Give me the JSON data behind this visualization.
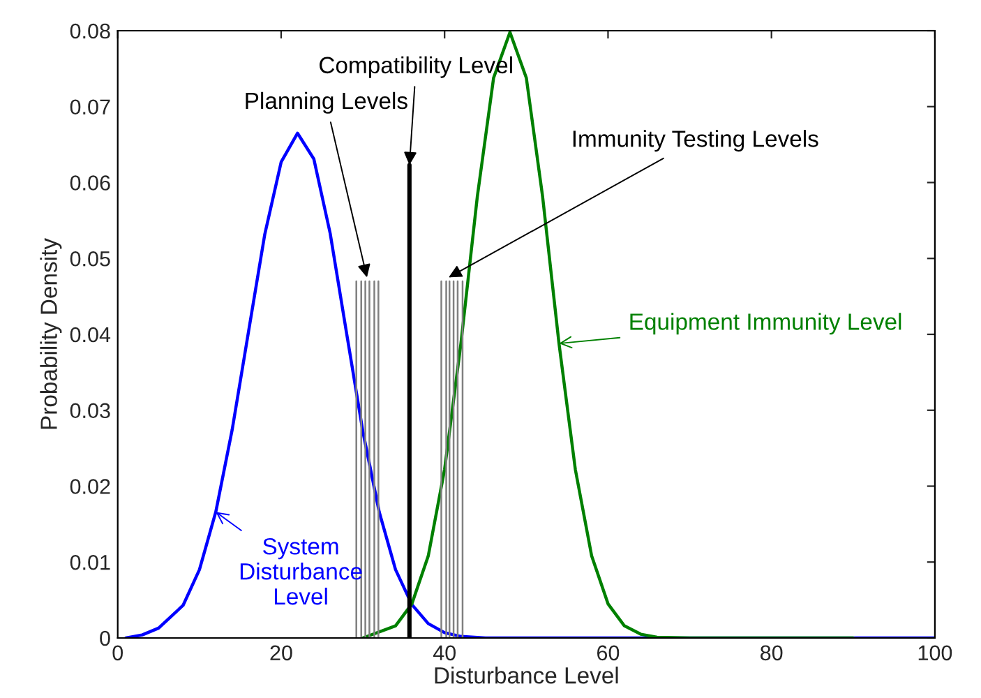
{
  "chart_data": {
    "type": "line",
    "xlabel": "Disturbance Level",
    "ylabel": "Probability Density",
    "xlim": [
      0,
      100
    ],
    "ylim": [
      0,
      0.08
    ],
    "xticks": [
      0,
      20,
      40,
      60,
      80,
      100
    ],
    "yticks": [
      0,
      0.01,
      0.02,
      0.03,
      0.04,
      0.05,
      0.06,
      0.07,
      0.08
    ],
    "grid": false,
    "marker": "none",
    "line_style": "solid",
    "series": [
      {
        "color": "#0000ff",
        "x": [
          1,
          3,
          5,
          8,
          10,
          12,
          14,
          16,
          18,
          20,
          22,
          24,
          26,
          28,
          30,
          32,
          34,
          36,
          38,
          40,
          42,
          45,
          50,
          100
        ],
        "values": [
          0,
          0.0004,
          0.0013,
          0.0043,
          0.009,
          0.0166,
          0.0274,
          0.0403,
          0.0532,
          0.0627,
          0.0665,
          0.0631,
          0.0533,
          0.0402,
          0.0272,
          0.0166,
          0.009,
          0.0044,
          0.0019,
          0.0007,
          0.0002,
          0,
          0,
          0
        ]
      },
      {
        "color": "#008000",
        "x": [
          30,
          34,
          36,
          38,
          40,
          42,
          44,
          46,
          48,
          50,
          52,
          54,
          56,
          58,
          60,
          62,
          64,
          66,
          70,
          90
        ],
        "values": [
          0,
          0.0016,
          0.0045,
          0.0108,
          0.0222,
          0.0388,
          0.0581,
          0.0738,
          0.0798,
          0.0738,
          0.0581,
          0.0388,
          0.0222,
          0.0108,
          0.0045,
          0.0016,
          0.0005,
          0.0001,
          0,
          0
        ]
      },
      {
        "color": "#808080",
        "x": [
          29.2,
          29.2,
          null,
          29.8,
          29.8,
          null,
          30.3,
          30.3,
          null,
          30.8,
          30.8,
          null,
          31.4,
          31.4,
          null,
          31.9,
          31.9
        ],
        "values": [
          0,
          0.047,
          null,
          0,
          0.047,
          null,
          0,
          0.047,
          null,
          0,
          0.047,
          null,
          0,
          0.047,
          null,
          0,
          0.047
        ]
      },
      {
        "color": "#808080",
        "x": [
          39.6,
          39.6,
          null,
          40.2,
          40.2,
          null,
          40.6,
          40.6,
          null,
          41.1,
          41.1,
          null,
          41.6,
          41.6,
          null,
          42.2,
          42.2
        ],
        "values": [
          0,
          0.047,
          null,
          0,
          0.047,
          null,
          0,
          0.047,
          null,
          0,
          0.047,
          null,
          0,
          0.047,
          null,
          0,
          0.047
        ]
      },
      {
        "color": "#000000",
        "x": [
          35.7,
          35.7
        ],
        "values": [
          0,
          0.0623
        ]
      }
    ],
    "annotations": [
      {
        "text": "Compatibility Level",
        "x": 35.7,
        "y": 0.0623
      },
      {
        "text": "Planning Levels",
        "x": 30.5,
        "y": 0.0475
      },
      {
        "text": "Immunity Testing Levels",
        "x": 40.5,
        "y": 0.0475
      },
      {
        "text": "Equipment Immunity Level",
        "x": 54,
        "y": 0.0388
      },
      {
        "text": "System\nDisturbance\nLevel",
        "x": 12,
        "y": 0.0166
      }
    ]
  }
}
